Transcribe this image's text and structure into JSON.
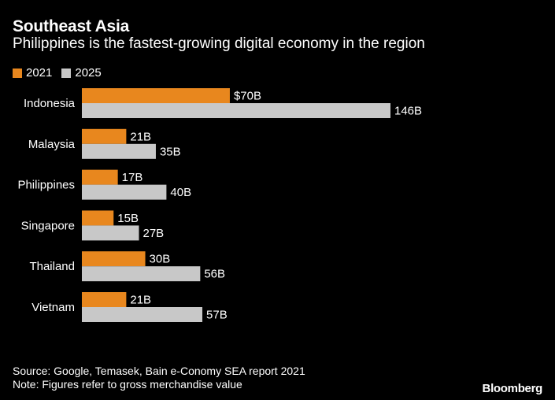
{
  "header": {
    "title": "Southeast Asia",
    "subtitle": "Philippines is the fastest-growing digital economy in the region"
  },
  "chart_data": {
    "type": "bar",
    "orientation": "horizontal",
    "categories": [
      "Indonesia",
      "Malaysia",
      "Philippines",
      "Singapore",
      "Thailand",
      "Vietnam"
    ],
    "series": [
      {
        "name": "2021",
        "color": "#e8871e",
        "values": [
          70,
          21,
          17,
          15,
          30,
          21
        ],
        "labels": [
          "$70B",
          "21B",
          "17B",
          "15B",
          "30B",
          "21B"
        ]
      },
      {
        "name": "2025",
        "color": "#c8c8c8",
        "values": [
          146,
          35,
          40,
          27,
          56,
          57
        ],
        "labels": [
          "146B",
          "35B",
          "40B",
          "27B",
          "56B",
          "57B"
        ]
      }
    ],
    "unit": "B",
    "xlim": [
      0,
      146
    ],
    "grid": false,
    "legend": "top-left"
  },
  "footer": {
    "source": "Source: Google, Temasek, Bain e-Conomy SEA report 2021",
    "note": "Note: Figures refer to gross merchandise value"
  },
  "brand": "Bloomberg"
}
